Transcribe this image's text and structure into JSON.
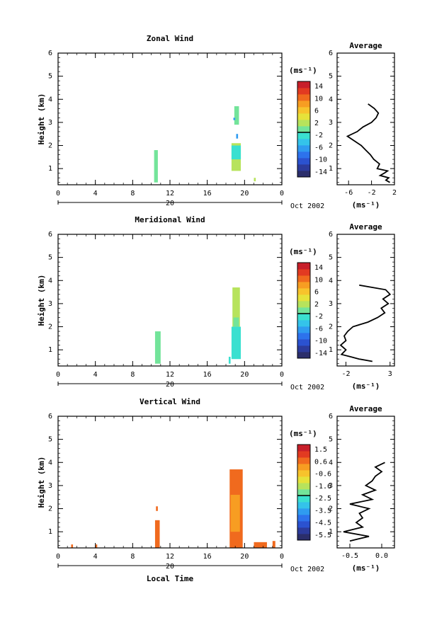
{
  "date_label": "Oct 2002",
  "day_label": "20",
  "xlabel_bottom": "Local Time",
  "chart_data": [
    {
      "type": "heatmap",
      "title": "Zonal Wind",
      "ylabel": "Height (km)",
      "xlim": [
        0,
        24
      ],
      "ylim": [
        0.3,
        6
      ],
      "xticks": [
        "0",
        "4",
        "8",
        "12",
        "16",
        "20",
        "0"
      ],
      "yticks": [
        "1",
        "2",
        "3",
        "4",
        "5",
        "6"
      ],
      "colorbar": {
        "unit": "(ms⁻¹)",
        "ticks": [
          "14",
          "10",
          "6",
          "2",
          "-2",
          "-6",
          "-10",
          "-14"
        ],
        "range": [
          -16,
          16
        ]
      },
      "cells": [
        {
          "x0": 10.3,
          "x1": 10.7,
          "y0": 0.4,
          "y1": 1.8,
          "v": -1
        },
        {
          "x0": 18.6,
          "x1": 19.6,
          "y0": 0.9,
          "y1": 2.1,
          "v": 3
        },
        {
          "x0": 18.6,
          "x1": 19.6,
          "y0": 1.4,
          "y1": 2.0,
          "v": -2
        },
        {
          "x0": 18.9,
          "x1": 19.4,
          "y0": 2.9,
          "y1": 3.7,
          "v": -1
        },
        {
          "x0": 18.8,
          "x1": 19.0,
          "y0": 3.1,
          "y1": 3.2,
          "v": -6
        },
        {
          "x0": 19.1,
          "x1": 19.3,
          "y0": 2.3,
          "y1": 2.5,
          "v": -6
        },
        {
          "x0": 21.0,
          "x1": 21.2,
          "y0": 0.45,
          "y1": 0.6,
          "v": 3
        }
      ],
      "average": {
        "title": "Average",
        "xlabel": "(ms⁻¹)",
        "xticks": [
          "-6",
          "-2",
          "2"
        ],
        "xlim": [
          -8,
          2
        ],
        "heights": [
          0.4,
          0.5,
          0.6,
          0.7,
          0.8,
          0.9,
          1.0,
          1.2,
          1.4,
          1.6,
          1.8,
          2.0,
          2.2,
          2.4,
          2.6,
          2.8,
          3.0,
          3.2,
          3.4,
          3.6,
          3.8
        ],
        "values": [
          1.2,
          0.5,
          1.0,
          -0.5,
          0.2,
          0.8,
          -1.0,
          -0.6,
          -1.6,
          -2.2,
          -3.0,
          -3.8,
          -5.0,
          -6.2,
          -4.5,
          -3.5,
          -2.0,
          -1.2,
          -0.8,
          -1.5,
          -2.6
        ]
      }
    },
    {
      "type": "heatmap",
      "title": "Meridional Wind",
      "ylabel": "Height (km)",
      "xlim": [
        0,
        24
      ],
      "ylim": [
        0.3,
        6
      ],
      "xticks": [
        "0",
        "4",
        "8",
        "12",
        "16",
        "20",
        "0"
      ],
      "yticks": [
        "1",
        "2",
        "3",
        "4",
        "5",
        "6"
      ],
      "colorbar": {
        "unit": "(ms⁻¹)",
        "ticks": [
          "14",
          "10",
          "6",
          "2",
          "-2",
          "-6",
          "-10",
          "-14"
        ],
        "range": [
          -16,
          16
        ]
      },
      "cells": [
        {
          "x0": 10.4,
          "x1": 11.0,
          "y0": 0.4,
          "y1": 1.8,
          "v": 1
        },
        {
          "x0": 18.3,
          "x1": 18.5,
          "y0": 0.4,
          "y1": 0.7,
          "v": -2
        },
        {
          "x0": 18.6,
          "x1": 19.6,
          "y0": 0.6,
          "y1": 2.0,
          "v": -3
        },
        {
          "x0": 18.7,
          "x1": 19.5,
          "y0": 2.0,
          "y1": 3.7,
          "v": 3
        },
        {
          "x0": 18.8,
          "x1": 19.4,
          "y0": 2.0,
          "y1": 2.4,
          "v": -1
        }
      ],
      "average": {
        "title": "Average",
        "xlabel": "(ms⁻¹)",
        "xticks": [
          "-2",
          "3"
        ],
        "xlim": [
          -3,
          3.5
        ],
        "heights": [
          0.5,
          0.6,
          0.7,
          0.8,
          1.0,
          1.2,
          1.4,
          1.6,
          1.8,
          2.0,
          2.2,
          2.4,
          2.6,
          2.8,
          3.0,
          3.2,
          3.4,
          3.6,
          3.8
        ],
        "values": [
          1.0,
          -0.5,
          -1.5,
          -2.5,
          -2.0,
          -2.6,
          -2.0,
          -2.2,
          -1.8,
          -1.2,
          0.5,
          1.6,
          2.4,
          2.0,
          2.8,
          2.2,
          3.0,
          2.5,
          -0.5
        ]
      }
    },
    {
      "type": "heatmap",
      "title": "Vertical Wind",
      "ylabel": "Height (km)",
      "xlabel": "Local Time",
      "xlim": [
        0,
        24
      ],
      "ylim": [
        0.3,
        6
      ],
      "xticks": [
        "0",
        "4",
        "8",
        "12",
        "16",
        "20",
        "0"
      ],
      "yticks": [
        "1",
        "2",
        "3",
        "4",
        "5",
        "6"
      ],
      "colorbar": {
        "unit": "(ms⁻¹)",
        "ticks": [
          "1.5",
          "0.6",
          "-0.6",
          "-1.6",
          "-2.5",
          "-3.5",
          "-4.5",
          "-5.5"
        ],
        "range": [
          -6,
          2
        ]
      },
      "cells": [
        {
          "x0": 10.4,
          "x1": 10.9,
          "y0": 0.3,
          "y1": 1.5,
          "v": 0.8
        },
        {
          "x0": 10.5,
          "x1": 10.7,
          "y0": 1.9,
          "y1": 2.1,
          "v": 0.6
        },
        {
          "x0": 18.4,
          "x1": 19.8,
          "y0": 0.3,
          "y1": 3.7,
          "v": 0.5
        },
        {
          "x0": 18.5,
          "x1": 19.5,
          "y0": 1.0,
          "y1": 2.6,
          "v": 0.2
        },
        {
          "x0": 1.4,
          "x1": 1.6,
          "y0": 0.3,
          "y1": 0.45,
          "v": 0.6
        },
        {
          "x0": 4.0,
          "x1": 4.2,
          "y0": 0.3,
          "y1": 0.45,
          "v": 0.6
        },
        {
          "x0": 21.0,
          "x1": 22.4,
          "y0": 0.3,
          "y1": 0.55,
          "v": 0.7
        },
        {
          "x0": 23.0,
          "x1": 23.3,
          "y0": 0.3,
          "y1": 0.6,
          "v": 0.8
        }
      ],
      "average": {
        "title": "Average",
        "xlabel": "(ms⁻¹)",
        "xticks": [
          "-0.5",
          "0.0"
        ],
        "xlim": [
          -0.7,
          0.2
        ],
        "heights": [
          0.6,
          0.8,
          1.0,
          1.2,
          1.4,
          1.6,
          1.8,
          2.0,
          2.2,
          2.4,
          2.6,
          2.8,
          3.0,
          3.2,
          3.4,
          3.6,
          3.8,
          4.0
        ],
        "values": [
          -0.5,
          -0.2,
          -0.6,
          -0.3,
          -0.4,
          -0.3,
          -0.35,
          -0.2,
          -0.5,
          -0.15,
          -0.3,
          -0.1,
          -0.25,
          -0.15,
          -0.1,
          0.0,
          -0.1,
          0.05
        ]
      }
    }
  ]
}
